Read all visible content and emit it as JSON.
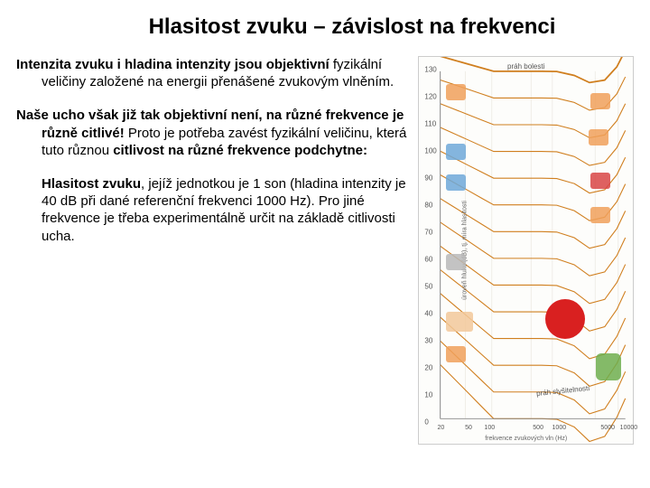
{
  "title": "Hlasitost zvuku – závislost na frekvenci",
  "para1_lead": "Intenzita zvuku i hladina intenzity jsou objektivní",
  "para1_rest": "fyzikální veličiny založené na energii přenášené zvukovým vlněním.",
  "para2_lead": "Naše ucho však již tak objektivní není, na různé frekvence je různě citlivé!",
  "para2_rest_a": " Proto je potřeba zavést fyzikální veličinu, která tuto různou ",
  "para2_rest_b": "citlivost na různé frekvence podchytne:",
  "para3_lead": "Hlasitost zvuku",
  "para3_rest": ", jejíž jednotkou je 1 son (hladina intenzity je 40 dB při dané referenční frekvenci 1000 Hz). Pro jiné frekvence je třeba experimentálně určit na základě citlivosti ucha.",
  "chart": {
    "type": "equal-loudness-curves",
    "x_axis": "frekvence zvukových vln (Hz)",
    "y_axis": "úroveň hluku (dB), tj. míra hlasitosti",
    "top_label": "práh bolesti",
    "threshold_label": "práh slyšitelnosti",
    "y_ticks": [
      0,
      10,
      20,
      30,
      40,
      50,
      60,
      70,
      80,
      90,
      100,
      110,
      120,
      130
    ],
    "x_ticks": [
      "20",
      "50",
      "100",
      "500",
      "1000",
      "5000",
      "10000"
    ],
    "curve_color": "#d07f1f",
    "grid_color": "#e6e3da",
    "bg": "#fdfdfb",
    "curves_dB": [
      0,
      10,
      20,
      30,
      40,
      50,
      60,
      70,
      80,
      90,
      100,
      110,
      120,
      130
    ],
    "icon_colors": {
      "vehicle": "#6fa8d8",
      "person": "#f0a05a",
      "phone": "#d84545",
      "device": "#b8b8b8",
      "plant": "#6fae4e",
      "skin": "#f2c89a"
    },
    "red_dot_color": "#D92020"
  }
}
